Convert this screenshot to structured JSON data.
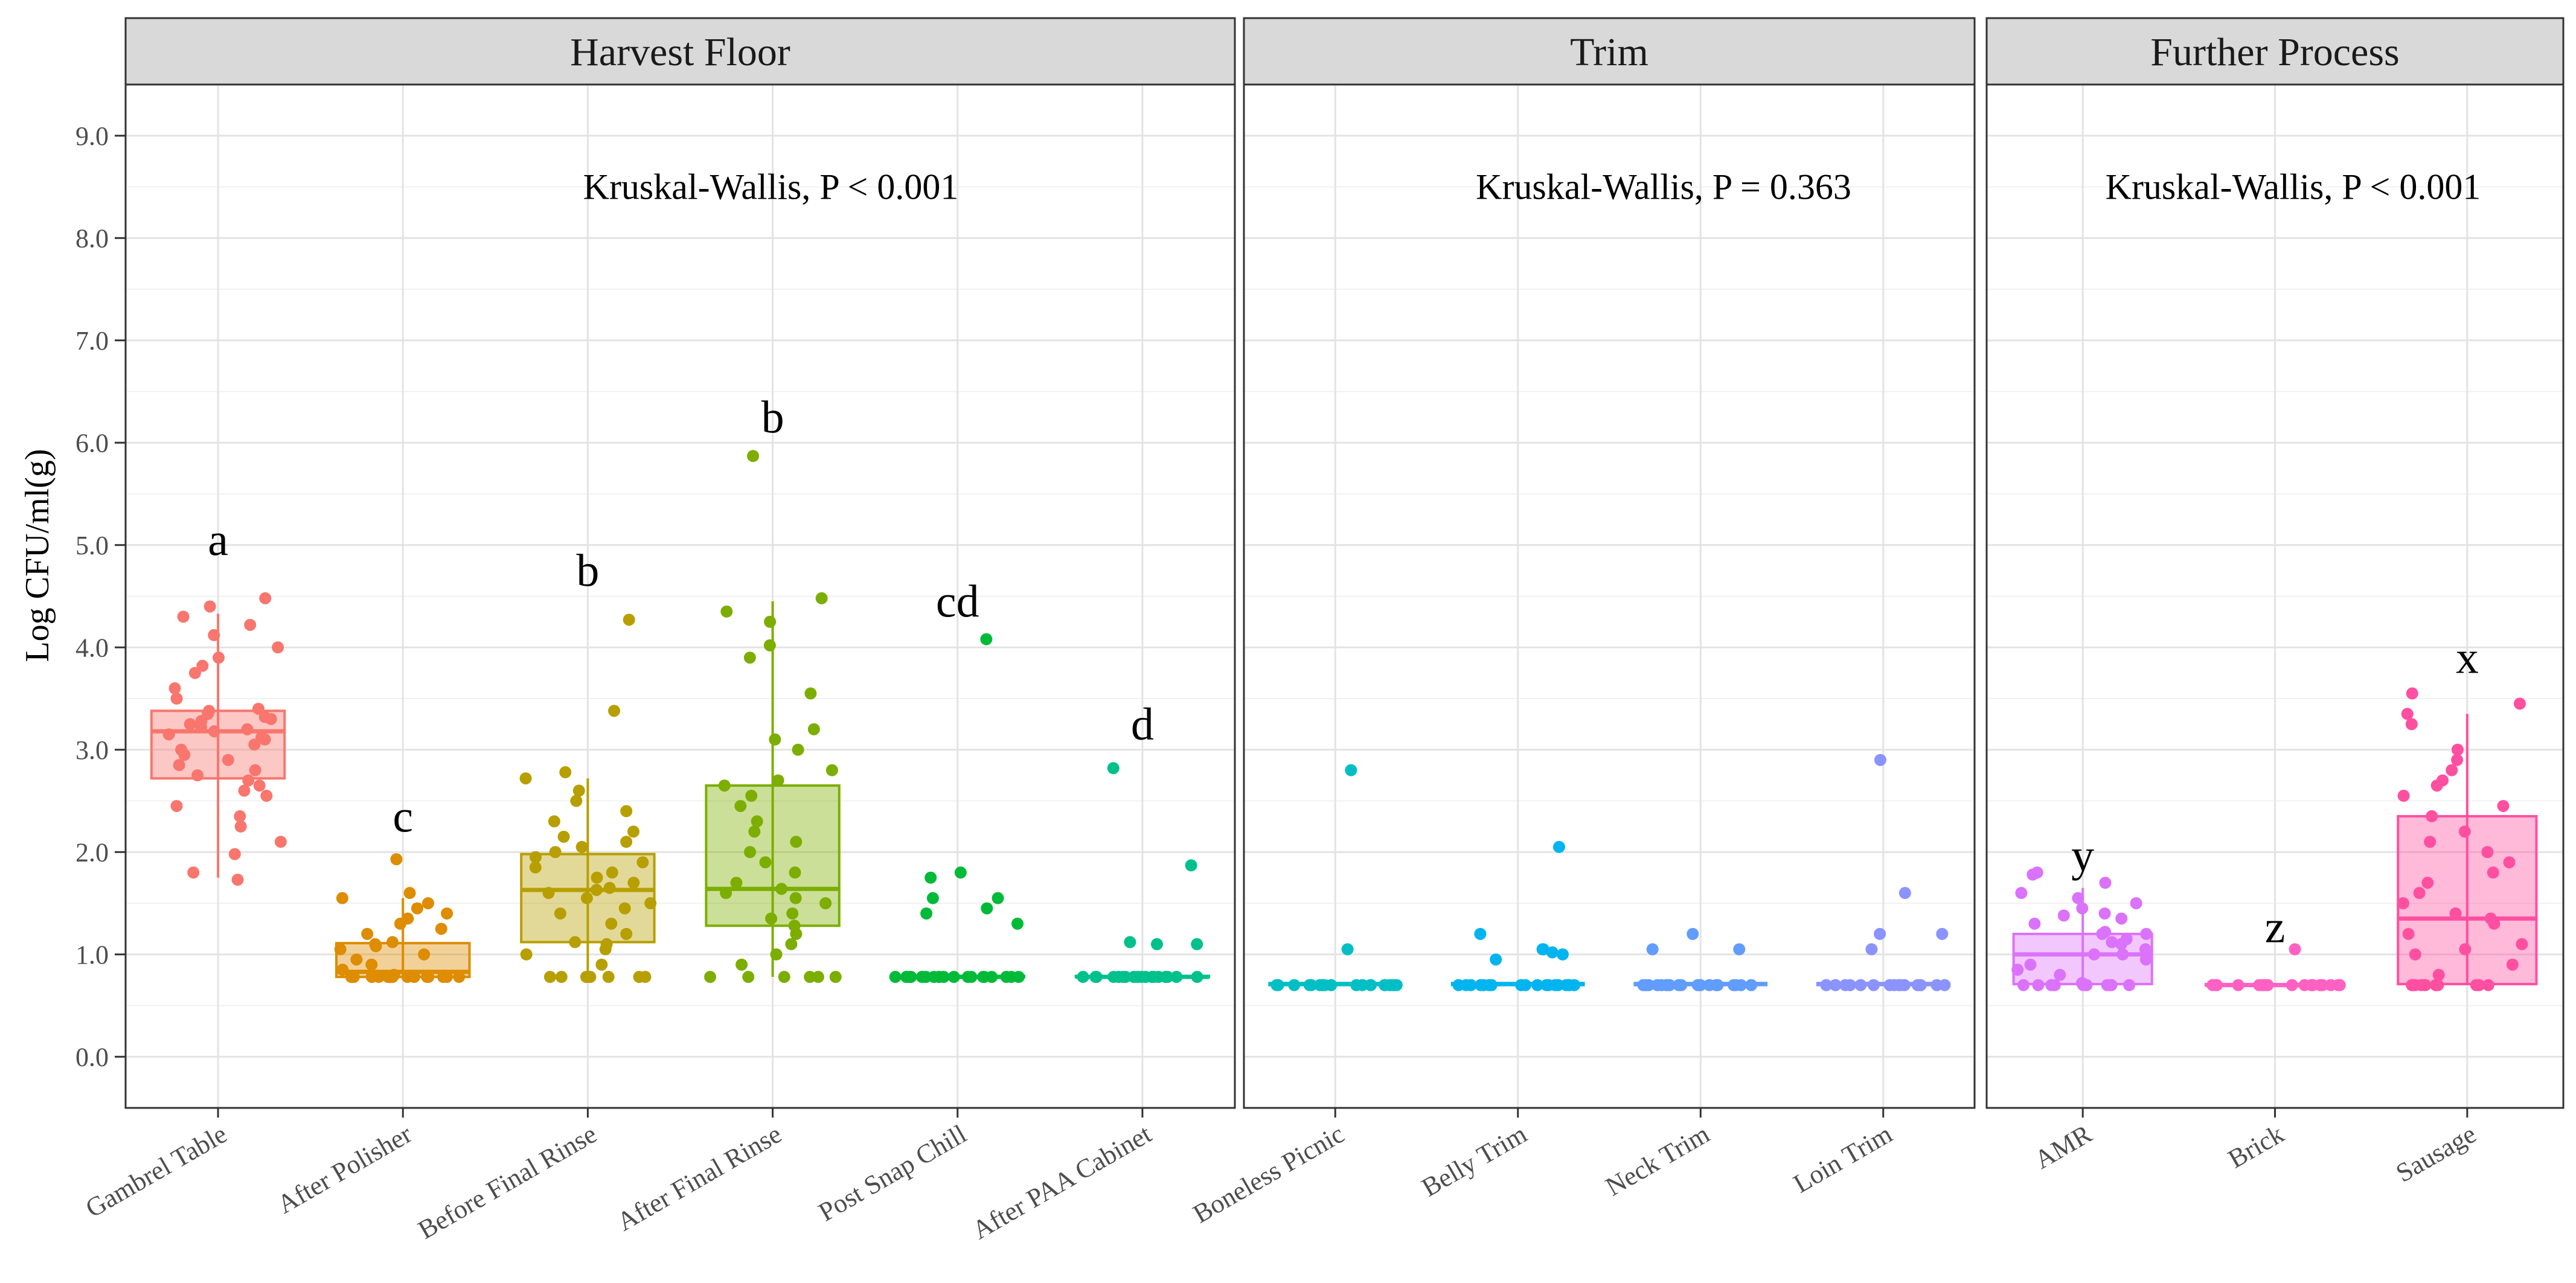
{
  "chart_data": {
    "type": "box",
    "ylabel": "Log CFU/ml(g)",
    "ylim": [
      -0.5,
      9.5
    ],
    "yticks": [
      "0.0",
      "1.0",
      "2.0",
      "3.0",
      "4.0",
      "5.0",
      "6.0",
      "7.0",
      "8.0",
      "9.0"
    ],
    "grid": true,
    "panels": [
      {
        "title": "Harvest Floor",
        "stat_label": "Kruskal-Wallis, P < 0.001",
        "categories": [
          {
            "name": "Gambrel Table",
            "color": "#F8766D",
            "letter": "a",
            "letter_y": 4.9,
            "q1": 2.72,
            "median": 3.18,
            "q3": 3.38,
            "whisker_low": 1.75,
            "whisker_high": 4.33,
            "points": [
              1.73,
              1.8,
              1.98,
              2.1,
              2.25,
              2.35,
              2.45,
              2.55,
              2.6,
              2.65,
              2.7,
              2.75,
              2.8,
              2.85,
              2.9,
              2.95,
              3.0,
              3.05,
              3.1,
              3.12,
              3.15,
              3.18,
              3.2,
              3.22,
              3.25,
              3.28,
              3.3,
              3.32,
              3.35,
              3.38,
              3.4,
              3.5,
              3.6,
              3.75,
              3.82,
              3.9,
              4.0,
              4.12,
              4.22,
              4.3,
              4.4,
              4.48
            ]
          },
          {
            "name": "After Polisher",
            "color": "#DE8C00",
            "letter": "c",
            "letter_y": 2.2,
            "q1": 0.78,
            "median": 0.83,
            "q3": 1.11,
            "whisker_low": 0.78,
            "whisker_high": 1.55,
            "points": [
              0.78,
              0.78,
              0.78,
              0.78,
              0.78,
              0.78,
              0.78,
              0.78,
              0.78,
              0.78,
              0.78,
              0.78,
              0.78,
              0.78,
              0.78,
              0.78,
              0.8,
              0.85,
              0.9,
              0.95,
              1.0,
              1.05,
              1.08,
              1.1,
              1.12,
              1.2,
              1.25,
              1.3,
              1.35,
              1.4,
              1.45,
              1.5,
              1.55,
              1.6,
              1.93
            ]
          },
          {
            "name": "Before Final Rinse",
            "color": "#B79F00",
            "letter": "b",
            "letter_y": 4.6,
            "q1": 1.12,
            "median": 1.63,
            "q3": 1.98,
            "whisker_low": 0.78,
            "whisker_high": 2.72,
            "points": [
              0.78,
              0.78,
              0.78,
              0.78,
              0.78,
              0.78,
              0.78,
              0.78,
              0.9,
              1.0,
              1.05,
              1.1,
              1.12,
              1.2,
              1.3,
              1.4,
              1.45,
              1.5,
              1.55,
              1.6,
              1.63,
              1.65,
              1.7,
              1.75,
              1.8,
              1.85,
              1.9,
              1.95,
              2.0,
              2.05,
              2.1,
              2.15,
              2.2,
              2.3,
              2.4,
              2.5,
              2.6,
              2.72,
              2.78,
              3.38,
              4.27
            ]
          },
          {
            "name": "After Final Rinse",
            "color": "#7CAE00",
            "letter": "b",
            "letter_y": 6.1,
            "q1": 1.28,
            "median": 1.64,
            "q3": 2.65,
            "whisker_low": 0.78,
            "whisker_high": 4.45,
            "points": [
              0.78,
              0.78,
              0.78,
              0.78,
              0.78,
              0.78,
              0.9,
              1.0,
              1.1,
              1.2,
              1.28,
              1.35,
              1.4,
              1.5,
              1.55,
              1.6,
              1.64,
              1.7,
              1.8,
              1.9,
              2.0,
              2.1,
              2.2,
              2.3,
              2.45,
              2.55,
              2.65,
              2.7,
              2.8,
              3.0,
              3.1,
              3.2,
              3.55,
              3.9,
              4.02,
              4.25,
              4.35,
              4.48,
              5.87
            ]
          },
          {
            "name": "Post Snap Chill",
            "color": "#00BA38",
            "letter": "cd",
            "letter_y": 4.3,
            "q1": 0.78,
            "median": 0.78,
            "q3": 0.79,
            "whisker_low": 0.78,
            "whisker_high": 0.8,
            "points": [
              0.78,
              0.78,
              0.78,
              0.78,
              0.78,
              0.78,
              0.78,
              0.78,
              0.78,
              0.78,
              0.78,
              0.78,
              0.78,
              0.78,
              0.78,
              0.78,
              0.78,
              0.78,
              0.78,
              0.78,
              0.78,
              0.78,
              1.3,
              1.4,
              1.45,
              1.55,
              1.55,
              1.75,
              1.8,
              4.08
            ]
          },
          {
            "name": "After PAA Cabinet",
            "color": "#00C08B",
            "letter": "d",
            "letter_y": 3.1,
            "q1": 0.78,
            "median": 0.78,
            "q3": 0.79,
            "whisker_low": 0.78,
            "whisker_high": 0.8,
            "points": [
              0.78,
              0.78,
              0.78,
              0.78,
              0.78,
              0.78,
              0.78,
              0.78,
              0.78,
              0.78,
              0.78,
              0.78,
              0.78,
              0.78,
              0.78,
              0.78,
              0.78,
              0.78,
              0.78,
              0.78,
              1.1,
              1.1,
              1.12,
              1.87,
              2.82
            ]
          }
        ]
      },
      {
        "title": "Trim",
        "stat_label": "Kruskal-Wallis, P = 0.363",
        "categories": [
          {
            "name": "Boneless Picnic",
            "color": "#00BFC4",
            "letter": "",
            "letter_y": 0,
            "q1": 0.7,
            "median": 0.71,
            "q3": 0.72,
            "whisker_low": 0.7,
            "whisker_high": 0.72,
            "points": [
              0.7,
              0.7,
              0.7,
              0.7,
              0.7,
              0.7,
              0.7,
              0.7,
              0.7,
              0.7,
              0.7,
              0.7,
              0.7,
              0.7,
              0.7,
              0.7,
              0.7,
              0.7,
              0.7,
              0.7,
              1.05,
              2.8
            ]
          },
          {
            "name": "Belly Trim",
            "color": "#00B4F0",
            "letter": "",
            "letter_y": 0,
            "q1": 0.7,
            "median": 0.71,
            "q3": 0.72,
            "whisker_low": 0.7,
            "whisker_high": 0.72,
            "points": [
              0.7,
              0.7,
              0.7,
              0.7,
              0.7,
              0.7,
              0.7,
              0.7,
              0.7,
              0.7,
              0.7,
              0.7,
              0.7,
              0.7,
              0.7,
              0.7,
              0.7,
              0.7,
              0.95,
              1.0,
              1.02,
              1.05,
              1.05,
              1.2,
              2.05
            ]
          },
          {
            "name": "Neck Trim",
            "color": "#619CFF",
            "letter": "",
            "letter_y": 0,
            "q1": 0.7,
            "median": 0.71,
            "q3": 0.72,
            "whisker_low": 0.7,
            "whisker_high": 0.72,
            "points": [
              0.7,
              0.7,
              0.7,
              0.7,
              0.7,
              0.7,
              0.7,
              0.7,
              0.7,
              0.7,
              0.7,
              0.7,
              0.7,
              0.7,
              0.7,
              0.7,
              0.7,
              0.7,
              0.7,
              0.7,
              1.05,
              1.05,
              1.2
            ]
          },
          {
            "name": "Loin Trim",
            "color": "#8B93FF",
            "letter": "",
            "letter_y": 0,
            "q1": 0.7,
            "median": 0.71,
            "q3": 0.72,
            "whisker_low": 0.7,
            "whisker_high": 0.72,
            "points": [
              0.7,
              0.7,
              0.7,
              0.7,
              0.7,
              0.7,
              0.7,
              0.7,
              0.7,
              0.7,
              0.7,
              0.7,
              0.7,
              0.7,
              0.7,
              0.7,
              1.05,
              1.2,
              1.2,
              1.6,
              2.9
            ]
          }
        ]
      },
      {
        "title": "Further Process",
        "stat_label": "Kruskal-Wallis, P < 0.001",
        "categories": [
          {
            "name": "AMR",
            "color": "#DB72FB",
            "letter": "y",
            "letter_y": 1.82,
            "q1": 0.71,
            "median": 1.0,
            "q3": 1.2,
            "whisker_low": 0.7,
            "whisker_high": 1.65,
            "points": [
              0.7,
              0.7,
              0.7,
              0.7,
              0.7,
              0.7,
              0.7,
              0.7,
              0.7,
              0.7,
              0.72,
              0.8,
              0.85,
              0.9,
              0.95,
              1.0,
              1.0,
              1.05,
              1.1,
              1.12,
              1.15,
              1.2,
              1.2,
              1.22,
              1.3,
              1.35,
              1.38,
              1.4,
              1.45,
              1.5,
              1.55,
              1.6,
              1.7,
              1.78,
              1.8
            ]
          },
          {
            "name": "Brick",
            "color": "#FF61C3",
            "letter": "z",
            "letter_y": 1.12,
            "q1": 0.7,
            "median": 0.7,
            "q3": 0.71,
            "whisker_low": 0.7,
            "whisker_high": 0.71,
            "points": [
              0.7,
              0.7,
              0.7,
              0.7,
              0.7,
              0.7,
              0.7,
              0.7,
              0.7,
              0.7,
              0.7,
              0.7,
              0.7,
              0.7,
              0.7,
              0.7,
              0.7,
              0.7,
              1.05
            ]
          },
          {
            "name": "Sausage",
            "color": "#FF4FA0",
            "letter": "x",
            "letter_y": 3.75,
            "q1": 0.71,
            "median": 1.35,
            "q3": 2.35,
            "whisker_low": 0.7,
            "whisker_high": 3.35,
            "points": [
              0.7,
              0.7,
              0.7,
              0.7,
              0.7,
              0.7,
              0.7,
              0.7,
              0.7,
              0.7,
              0.7,
              0.7,
              0.8,
              0.9,
              1.0,
              1.05,
              1.1,
              1.2,
              1.3,
              1.35,
              1.4,
              1.5,
              1.6,
              1.7,
              1.8,
              1.9,
              2.0,
              2.1,
              2.2,
              2.35,
              2.45,
              2.55,
              2.65,
              2.7,
              2.8,
              2.9,
              3.0,
              3.25,
              3.35,
              3.45,
              3.55
            ]
          }
        ]
      }
    ]
  }
}
